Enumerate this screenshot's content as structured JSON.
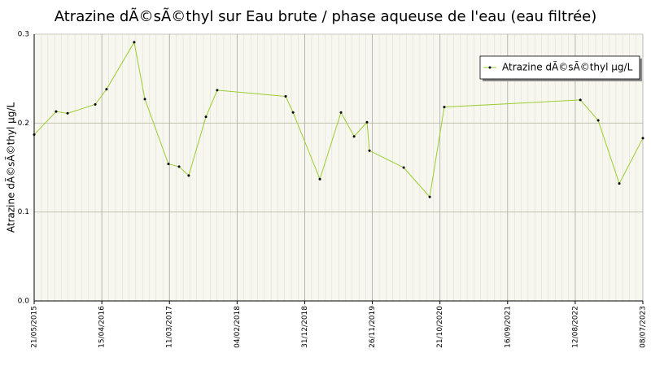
{
  "chart_data": {
    "type": "line",
    "title": "Atrazine dÃ©sÃ©thyl sur Eau brute / phase aqueuse de l'eau (eau filtrée)",
    "y_label": "Atrazine dÃ©sÃ©thyl µg/L",
    "x": [
      "21/05/2015",
      "05/09/2015",
      "31/10/2015",
      "14/03/2016",
      "08/05/2016",
      "20/09/2016",
      "11/11/2016",
      "06/03/2017",
      "27/04/2017",
      "13/06/2017",
      "05/09/2017",
      "30/10/2017",
      "29/09/2018",
      "04/11/2018",
      "15/03/2019",
      "26/06/2019",
      "29/08/2019",
      "31/10/2019",
      "12/11/2019",
      "27/04/2020",
      "01/09/2020",
      "11/11/2020",
      "06/09/2022",
      "02/12/2022",
      "15/03/2023",
      "08/07/2023"
    ],
    "series": [
      {
        "name": "Atrazine dÃ©sÃ©thyl µg/L",
        "color": "#9acd32",
        "values": [
          0.187,
          0.213,
          0.211,
          0.221,
          0.238,
          0.291,
          0.227,
          0.154,
          0.151,
          0.141,
          0.207,
          0.237,
          0.23,
          0.212,
          0.137,
          0.212,
          0.185,
          0.201,
          0.169,
          0.15,
          0.117,
          0.218,
          0.226,
          0.203,
          0.132,
          0.183
        ]
      }
    ],
    "xlim": [
      "21/05/2015",
      "08/07/2023"
    ],
    "xticks": [
      "21/05/2015",
      "15/04/2016",
      "11/03/2017",
      "04/02/2018",
      "31/12/2018",
      "26/11/2019",
      "21/10/2020",
      "16/09/2021",
      "12/08/2022",
      "08/07/2023"
    ],
    "ylim": [
      0,
      0.3
    ],
    "yticks": [
      {
        "value": 0,
        "label": "0.0"
      },
      0.1,
      0.2,
      0.3
    ],
    "grid": true,
    "legend": "top-right"
  }
}
